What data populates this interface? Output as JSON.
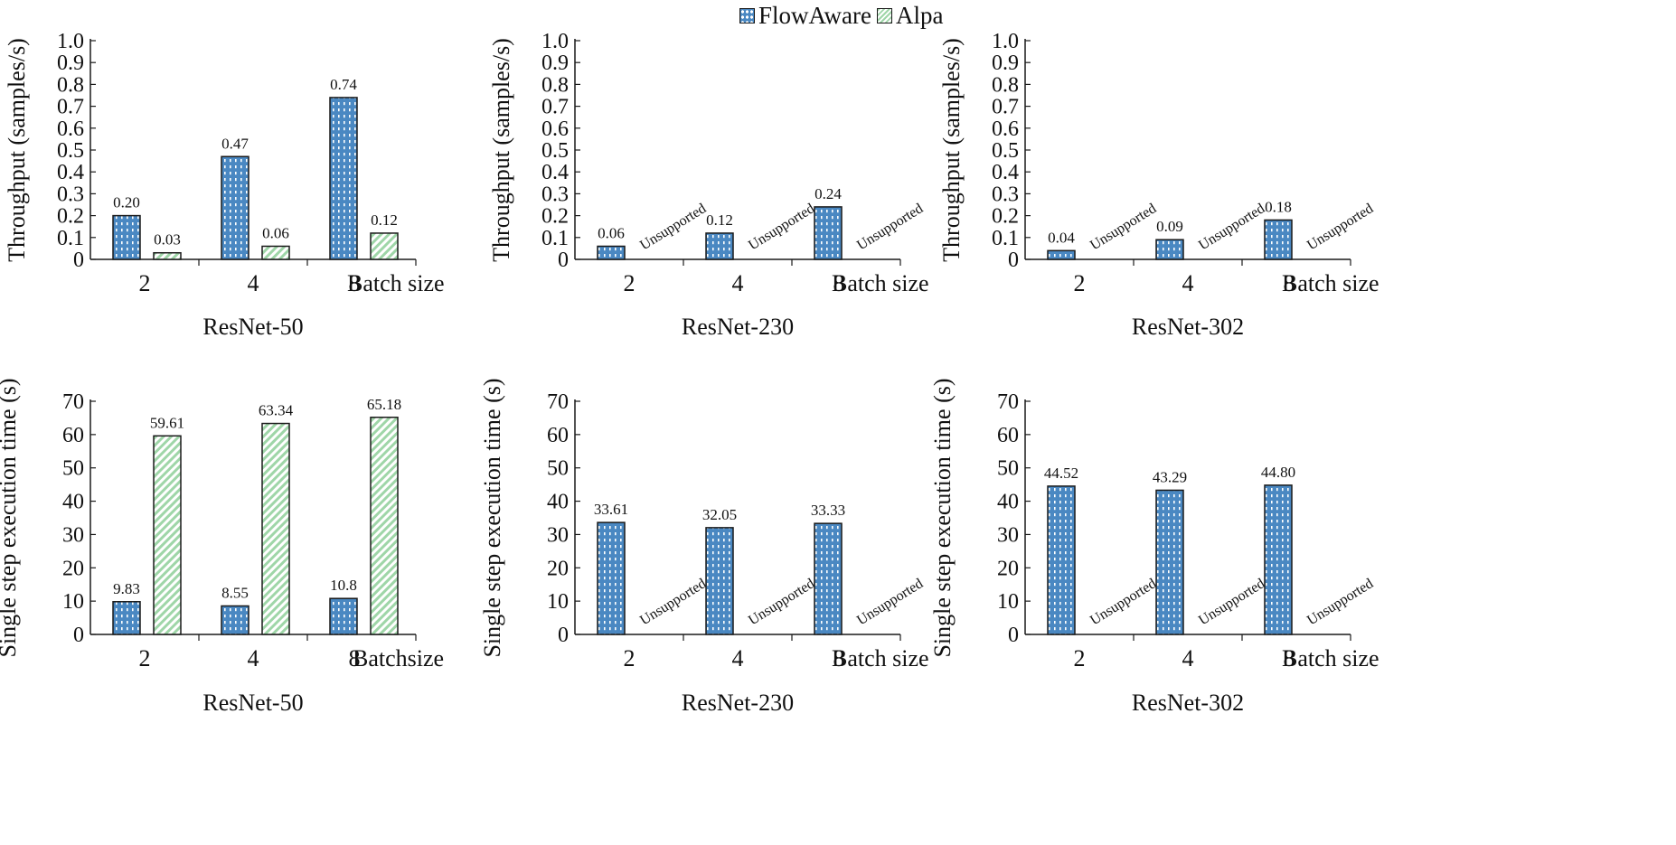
{
  "legend": {
    "series_a": "FlowAware",
    "series_b": "Alpa"
  },
  "colors": {
    "flowaware": "#4a88c2",
    "alpa": "#9fd6a8",
    "axis": "#1a1a1a"
  },
  "chart_data": [
    {
      "type": "bar",
      "title": "ResNet-50",
      "ylabel": "Throughput (samples/s)",
      "xlabel": "Batch size",
      "categories": [
        "2",
        "4",
        "8"
      ],
      "ylim": [
        0,
        1.0
      ],
      "yticks": [
        0,
        0.1,
        0.2,
        0.3,
        0.4,
        0.5,
        0.6,
        0.7,
        0.8,
        0.9,
        1.0
      ],
      "ytick_labels": [
        "0",
        "0.1",
        "0.2",
        "0.3",
        "0.4",
        "0.5",
        "0.6",
        "0.7",
        "0.8",
        "0.9",
        "1.0"
      ],
      "series": [
        {
          "name": "FlowAware",
          "values": [
            0.2,
            0.47,
            0.74
          ],
          "labels": [
            "0.20",
            "0.47",
            "0.74"
          ]
        },
        {
          "name": "Alpa",
          "values": [
            0.03,
            0.06,
            0.12
          ],
          "labels": [
            "0.03",
            "0.06",
            "0.12"
          ]
        }
      ]
    },
    {
      "type": "bar",
      "title": "ResNet-230",
      "ylabel": "Throughput (samples/s)",
      "xlabel": "Batch size",
      "categories": [
        "2",
        "4",
        "8"
      ],
      "ylim": [
        0,
        1.0
      ],
      "yticks": [
        0,
        0.1,
        0.2,
        0.3,
        0.4,
        0.5,
        0.6,
        0.7,
        0.8,
        0.9,
        1.0
      ],
      "ytick_labels": [
        "0",
        "0.1",
        "0.2",
        "0.3",
        "0.4",
        "0.5",
        "0.6",
        "0.7",
        "0.8",
        "0.9",
        "1.0"
      ],
      "series": [
        {
          "name": "FlowAware",
          "values": [
            0.06,
            0.12,
            0.24
          ],
          "labels": [
            "0.06",
            "0.12",
            "0.24"
          ]
        },
        {
          "name": "Alpa",
          "values": [
            null,
            null,
            null
          ],
          "labels": [
            "Unsupported",
            "Unsupported",
            "Unsupported"
          ]
        }
      ]
    },
    {
      "type": "bar",
      "title": "ResNet-302",
      "ylabel": "Throughput (samples/s)",
      "xlabel": "Batch size",
      "categories": [
        "2",
        "4",
        "8"
      ],
      "ylim": [
        0,
        1.0
      ],
      "yticks": [
        0,
        0.1,
        0.2,
        0.3,
        0.4,
        0.5,
        0.6,
        0.7,
        0.8,
        0.9,
        1.0
      ],
      "ytick_labels": [
        "0",
        "0.1",
        "0.2",
        "0.3",
        "0.4",
        "0.5",
        "0.6",
        "0.7",
        "0.8",
        "0.9",
        "1.0"
      ],
      "series": [
        {
          "name": "FlowAware",
          "values": [
            0.04,
            0.09,
            0.18
          ],
          "labels": [
            "0.04",
            "0.09",
            "0.18"
          ]
        },
        {
          "name": "Alpa",
          "values": [
            null,
            null,
            null
          ],
          "labels": [
            "Unsupported",
            "Unsupported",
            "Unsupported"
          ]
        }
      ]
    },
    {
      "type": "bar",
      "title": "ResNet-50",
      "ylabel": "Single step execution time (s)",
      "xlabel": "Batchsize",
      "categories": [
        "2",
        "4",
        "8"
      ],
      "ylim": [
        0,
        70
      ],
      "yticks": [
        0,
        10,
        20,
        30,
        40,
        50,
        60,
        70
      ],
      "ytick_labels": [
        "0",
        "10",
        "20",
        "30",
        "40",
        "50",
        "60",
        "70"
      ],
      "series": [
        {
          "name": "FlowAware",
          "values": [
            9.83,
            8.55,
            10.8
          ],
          "labels": [
            "9.83",
            "8.55",
            "10.8"
          ]
        },
        {
          "name": "Alpa",
          "values": [
            59.61,
            63.34,
            65.18
          ],
          "labels": [
            "59.61",
            "63.34",
            "65.18"
          ]
        }
      ]
    },
    {
      "type": "bar",
      "title": "ResNet-230",
      "ylabel": "Single step execution time (s)",
      "xlabel": "Batch size",
      "categories": [
        "2",
        "4",
        "8"
      ],
      "ylim": [
        0,
        70
      ],
      "yticks": [
        0,
        10,
        20,
        30,
        40,
        50,
        60,
        70
      ],
      "ytick_labels": [
        "0",
        "10",
        "20",
        "30",
        "40",
        "50",
        "60",
        "70"
      ],
      "series": [
        {
          "name": "FlowAware",
          "values": [
            33.61,
            32.05,
            33.33
          ],
          "labels": [
            "33.61",
            "32.05",
            "33.33"
          ]
        },
        {
          "name": "Alpa",
          "values": [
            null,
            null,
            null
          ],
          "labels": [
            "Unsupported",
            "Unsupported",
            "Unsupported"
          ]
        }
      ]
    },
    {
      "type": "bar",
      "title": "ResNet-302",
      "ylabel": "Single step execution time (s)",
      "xlabel": "Batch size",
      "categories": [
        "2",
        "4",
        "8"
      ],
      "ylim": [
        0,
        70
      ],
      "yticks": [
        0,
        10,
        20,
        30,
        40,
        50,
        60,
        70
      ],
      "ytick_labels": [
        "0",
        "10",
        "20",
        "30",
        "40",
        "50",
        "60",
        "70"
      ],
      "series": [
        {
          "name": "FlowAware",
          "values": [
            44.52,
            43.29,
            44.8
          ],
          "labels": [
            "44.52",
            "43.29",
            "44.80"
          ]
        },
        {
          "name": "Alpa",
          "values": [
            null,
            null,
            null
          ],
          "labels": [
            "Unsupported",
            "Unsupported",
            "Unsupported"
          ]
        }
      ]
    }
  ]
}
